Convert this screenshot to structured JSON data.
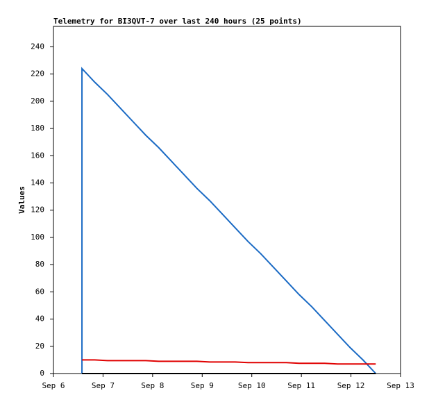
{
  "chart_data": {
    "type": "line",
    "title": "Telemetry for BI3QVT-7 over last 240 hours (25 points)",
    "ylabel": "Values",
    "x": [
      0.575,
      0.575,
      0.833,
      1.09,
      1.348,
      1.605,
      1.863,
      2.121,
      2.378,
      2.636,
      2.893,
      3.151,
      3.409,
      3.666,
      3.924,
      4.181,
      4.439,
      4.697,
      4.954,
      5.212,
      5.469,
      5.727,
      5.985,
      6.242,
      6.5
    ],
    "series": [
      {
        "color": "#1a6ac4",
        "values": [
          0,
          224,
          214,
          205,
          195,
          185,
          175,
          166,
          156,
          146,
          136,
          127,
          117,
          107,
          97,
          88,
          78,
          68,
          58,
          49,
          39,
          29,
          19,
          10,
          0
        ]
      },
      {
        "color": "#e00000",
        "values": [
          null,
          10,
          10,
          9.5,
          9.5,
          9.5,
          9.5,
          9,
          9,
          9,
          9,
          8.5,
          8.5,
          8.5,
          8,
          8,
          8,
          8,
          7.5,
          7.5,
          7.5,
          7,
          7,
          7,
          7
        ]
      },
      {
        "color": "#000000",
        "values": [
          null,
          0,
          0,
          0,
          0,
          0,
          0,
          0,
          0,
          0,
          0,
          0,
          0,
          0,
          0,
          0,
          0,
          0,
          0,
          0,
          0,
          0,
          0,
          0,
          0
        ]
      }
    ],
    "xlim": [
      0,
      7
    ],
    "xticks": [
      {
        "value": 0,
        "label": "Sep 6"
      },
      {
        "value": 1,
        "label": "Sep 7"
      },
      {
        "value": 2,
        "label": "Sep 8"
      },
      {
        "value": 3,
        "label": "Sep 9"
      },
      {
        "value": 4,
        "label": "Sep 10"
      },
      {
        "value": 5,
        "label": "Sep 11"
      },
      {
        "value": 6,
        "label": "Sep 12"
      },
      {
        "value": 7,
        "label": "Sep 13"
      }
    ],
    "ylim": [
      0,
      255
    ],
    "yticks": [
      0,
      20,
      40,
      60,
      80,
      100,
      120,
      140,
      160,
      180,
      200,
      220,
      240
    ]
  }
}
